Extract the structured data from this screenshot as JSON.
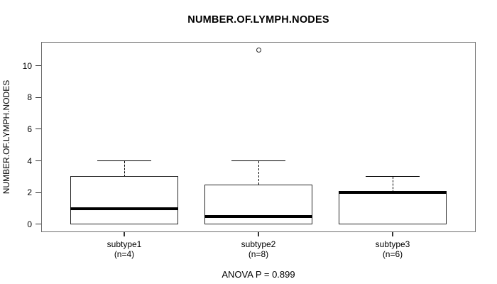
{
  "chart_data": {
    "type": "box",
    "title": "NUMBER.OF.LYMPH.NODES",
    "ylabel": "NUMBER.OF.LYMPH.NODES",
    "xlabel": "",
    "ylim": [
      -0.5,
      11.5
    ],
    "yticks": [
      0,
      2,
      4,
      6,
      8,
      10
    ],
    "grid": false,
    "legend": "none",
    "annotation": "ANOVA P = 0.899",
    "groups": [
      {
        "label": "subtype1",
        "sublabel": "(n=4)",
        "whisker_low": 0,
        "q1": 0,
        "median": 1,
        "q3": 3,
        "whisker_high": 4,
        "outliers": []
      },
      {
        "label": "subtype2",
        "sublabel": "(n=8)",
        "whisker_low": 0,
        "q1": 0,
        "median": 0.5,
        "q3": 2.5,
        "whisker_high": 4,
        "outliers": [
          11
        ]
      },
      {
        "label": "subtype3",
        "sublabel": "(n=6)",
        "whisker_low": 0,
        "q1": 0,
        "median": 2,
        "q3": 2,
        "whisker_high": 3,
        "outliers": []
      }
    ]
  },
  "colors": {
    "line": "#000000",
    "frame": "#6e6e6e",
    "background": "#ffffff",
    "text": "#000000"
  }
}
